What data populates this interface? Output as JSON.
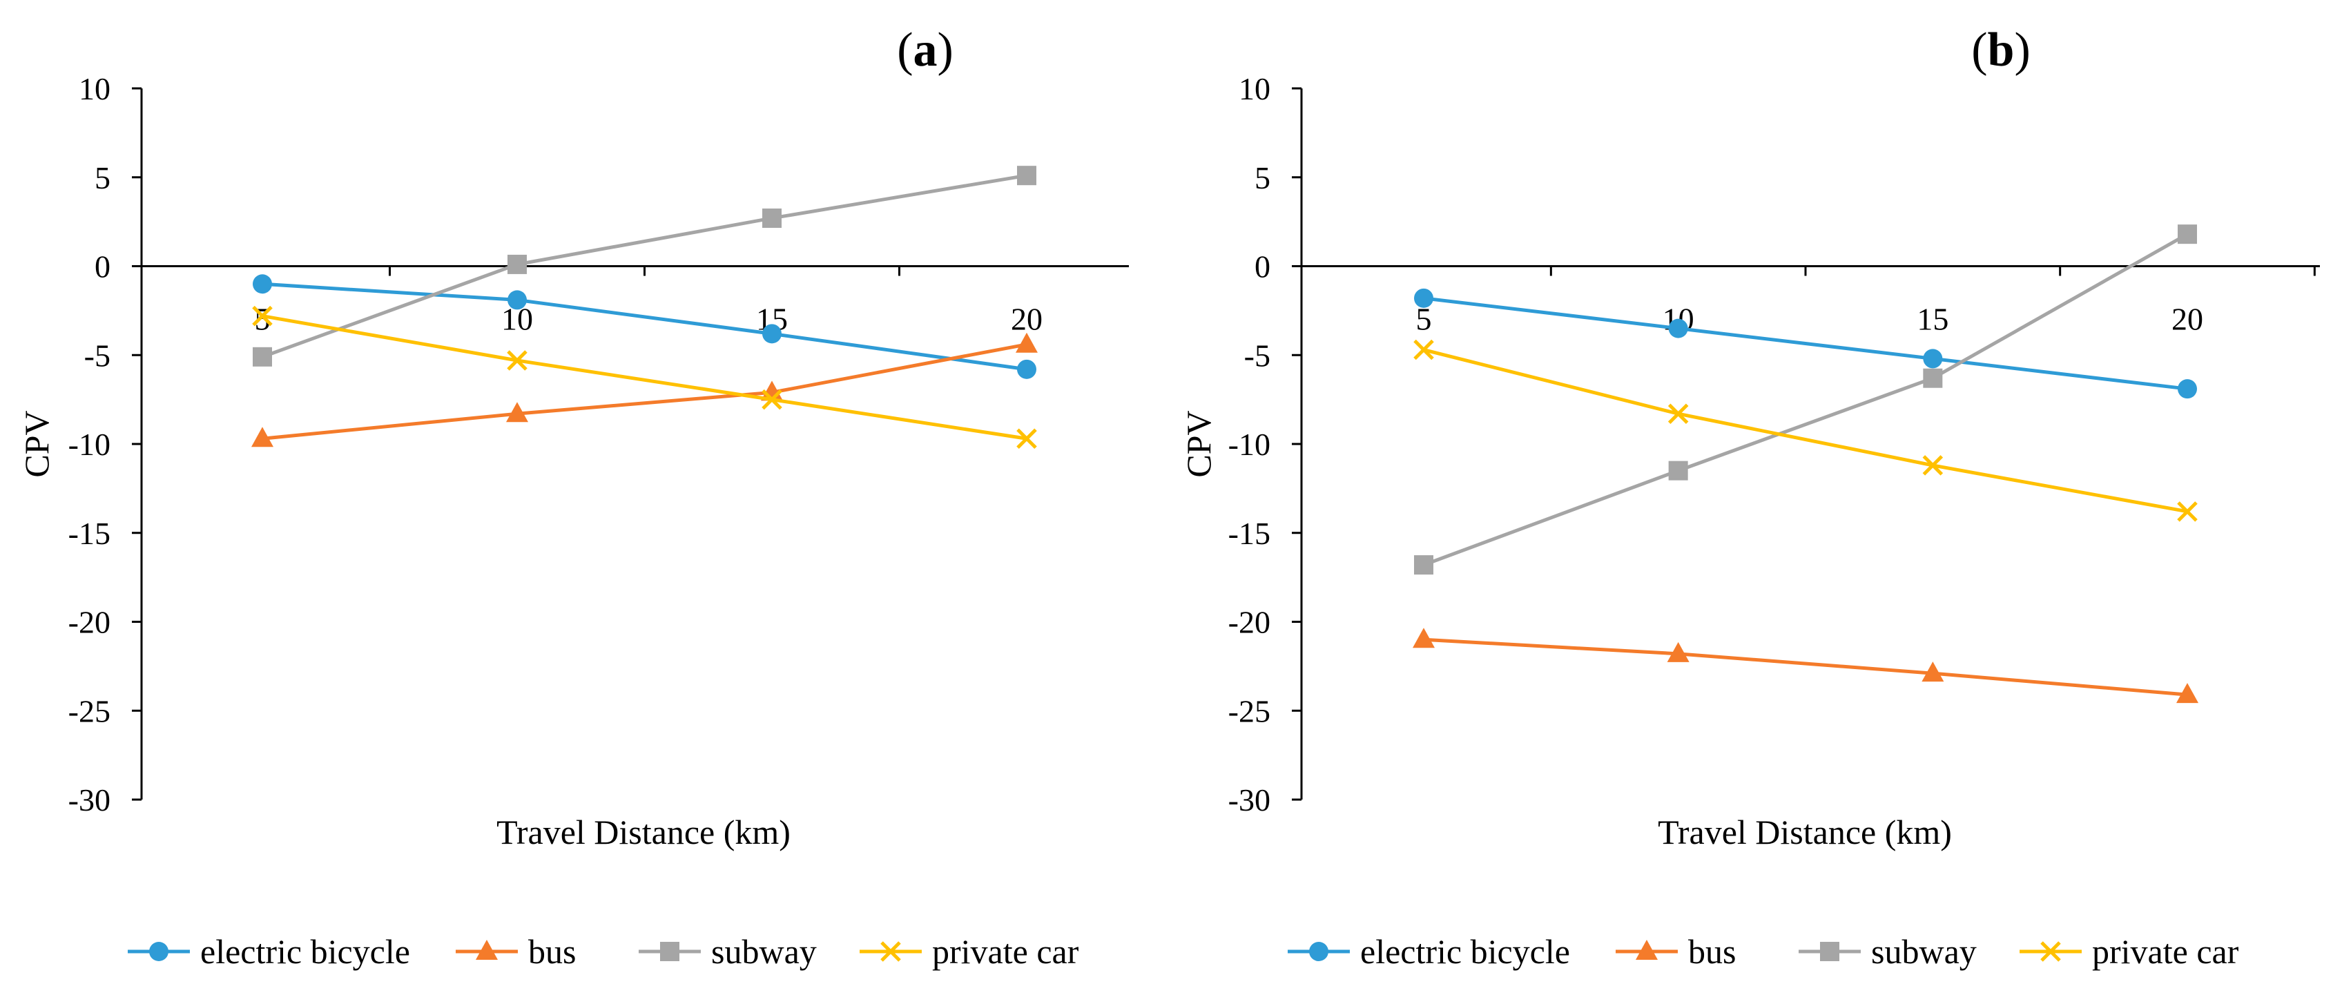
{
  "chart_data": [
    {
      "panel": "a",
      "type": "line",
      "title": "(a)",
      "title_letter": "a",
      "xlabel": "Travel Distance (km)",
      "ylabel": "CPV",
      "x": [
        5,
        10,
        15,
        20
      ],
      "x_tick_labels": [
        "5",
        "10",
        "15",
        "20"
      ],
      "ylim": [
        -30,
        10
      ],
      "y_ticks": [
        10,
        5,
        0,
        -5,
        -10,
        -15,
        -20,
        -25,
        -30
      ],
      "grid": false,
      "legend_position": "bottom",
      "series": [
        {
          "name": "electric bicycle",
          "marker": "circle",
          "color": "#2e9bd6",
          "values": [
            -1.0,
            -1.9,
            -3.8,
            -5.8
          ]
        },
        {
          "name": "bus",
          "marker": "triangle",
          "color": "#f47b2a",
          "values": [
            -9.7,
            -8.3,
            -7.1,
            -4.4
          ]
        },
        {
          "name": "subway",
          "marker": "square",
          "color": "#a5a5a5",
          "values": [
            -5.1,
            0.1,
            2.7,
            5.1
          ]
        },
        {
          "name": "private car",
          "marker": "x",
          "color": "#ffc000",
          "values": [
            -2.8,
            -5.3,
            -7.5,
            -9.7
          ]
        }
      ]
    },
    {
      "panel": "b",
      "type": "line",
      "title": "(b)",
      "title_letter": "b",
      "xlabel": "Travel Distance (km)",
      "ylabel": "CPV",
      "x": [
        5,
        10,
        15,
        20
      ],
      "x_tick_labels": [
        "5",
        "10",
        "15",
        "20"
      ],
      "ylim": [
        -30,
        10
      ],
      "y_ticks": [
        10,
        5,
        0,
        -5,
        -10,
        -15,
        -20,
        -25,
        -30
      ],
      "grid": false,
      "legend_position": "bottom",
      "series": [
        {
          "name": "electric bicycle",
          "marker": "circle",
          "color": "#2e9bd6",
          "values": [
            -1.8,
            -3.5,
            -5.2,
            -6.9
          ]
        },
        {
          "name": "bus",
          "marker": "triangle",
          "color": "#f47b2a",
          "values": [
            -21.0,
            -21.8,
            -22.9,
            -24.1
          ]
        },
        {
          "name": "subway",
          "marker": "square",
          "color": "#a5a5a5",
          "values": [
            -16.8,
            -11.5,
            -6.3,
            1.8
          ]
        },
        {
          "name": "private car",
          "marker": "x",
          "color": "#ffc000",
          "values": [
            -4.7,
            -8.3,
            -11.2,
            -13.8
          ]
        }
      ]
    }
  ]
}
